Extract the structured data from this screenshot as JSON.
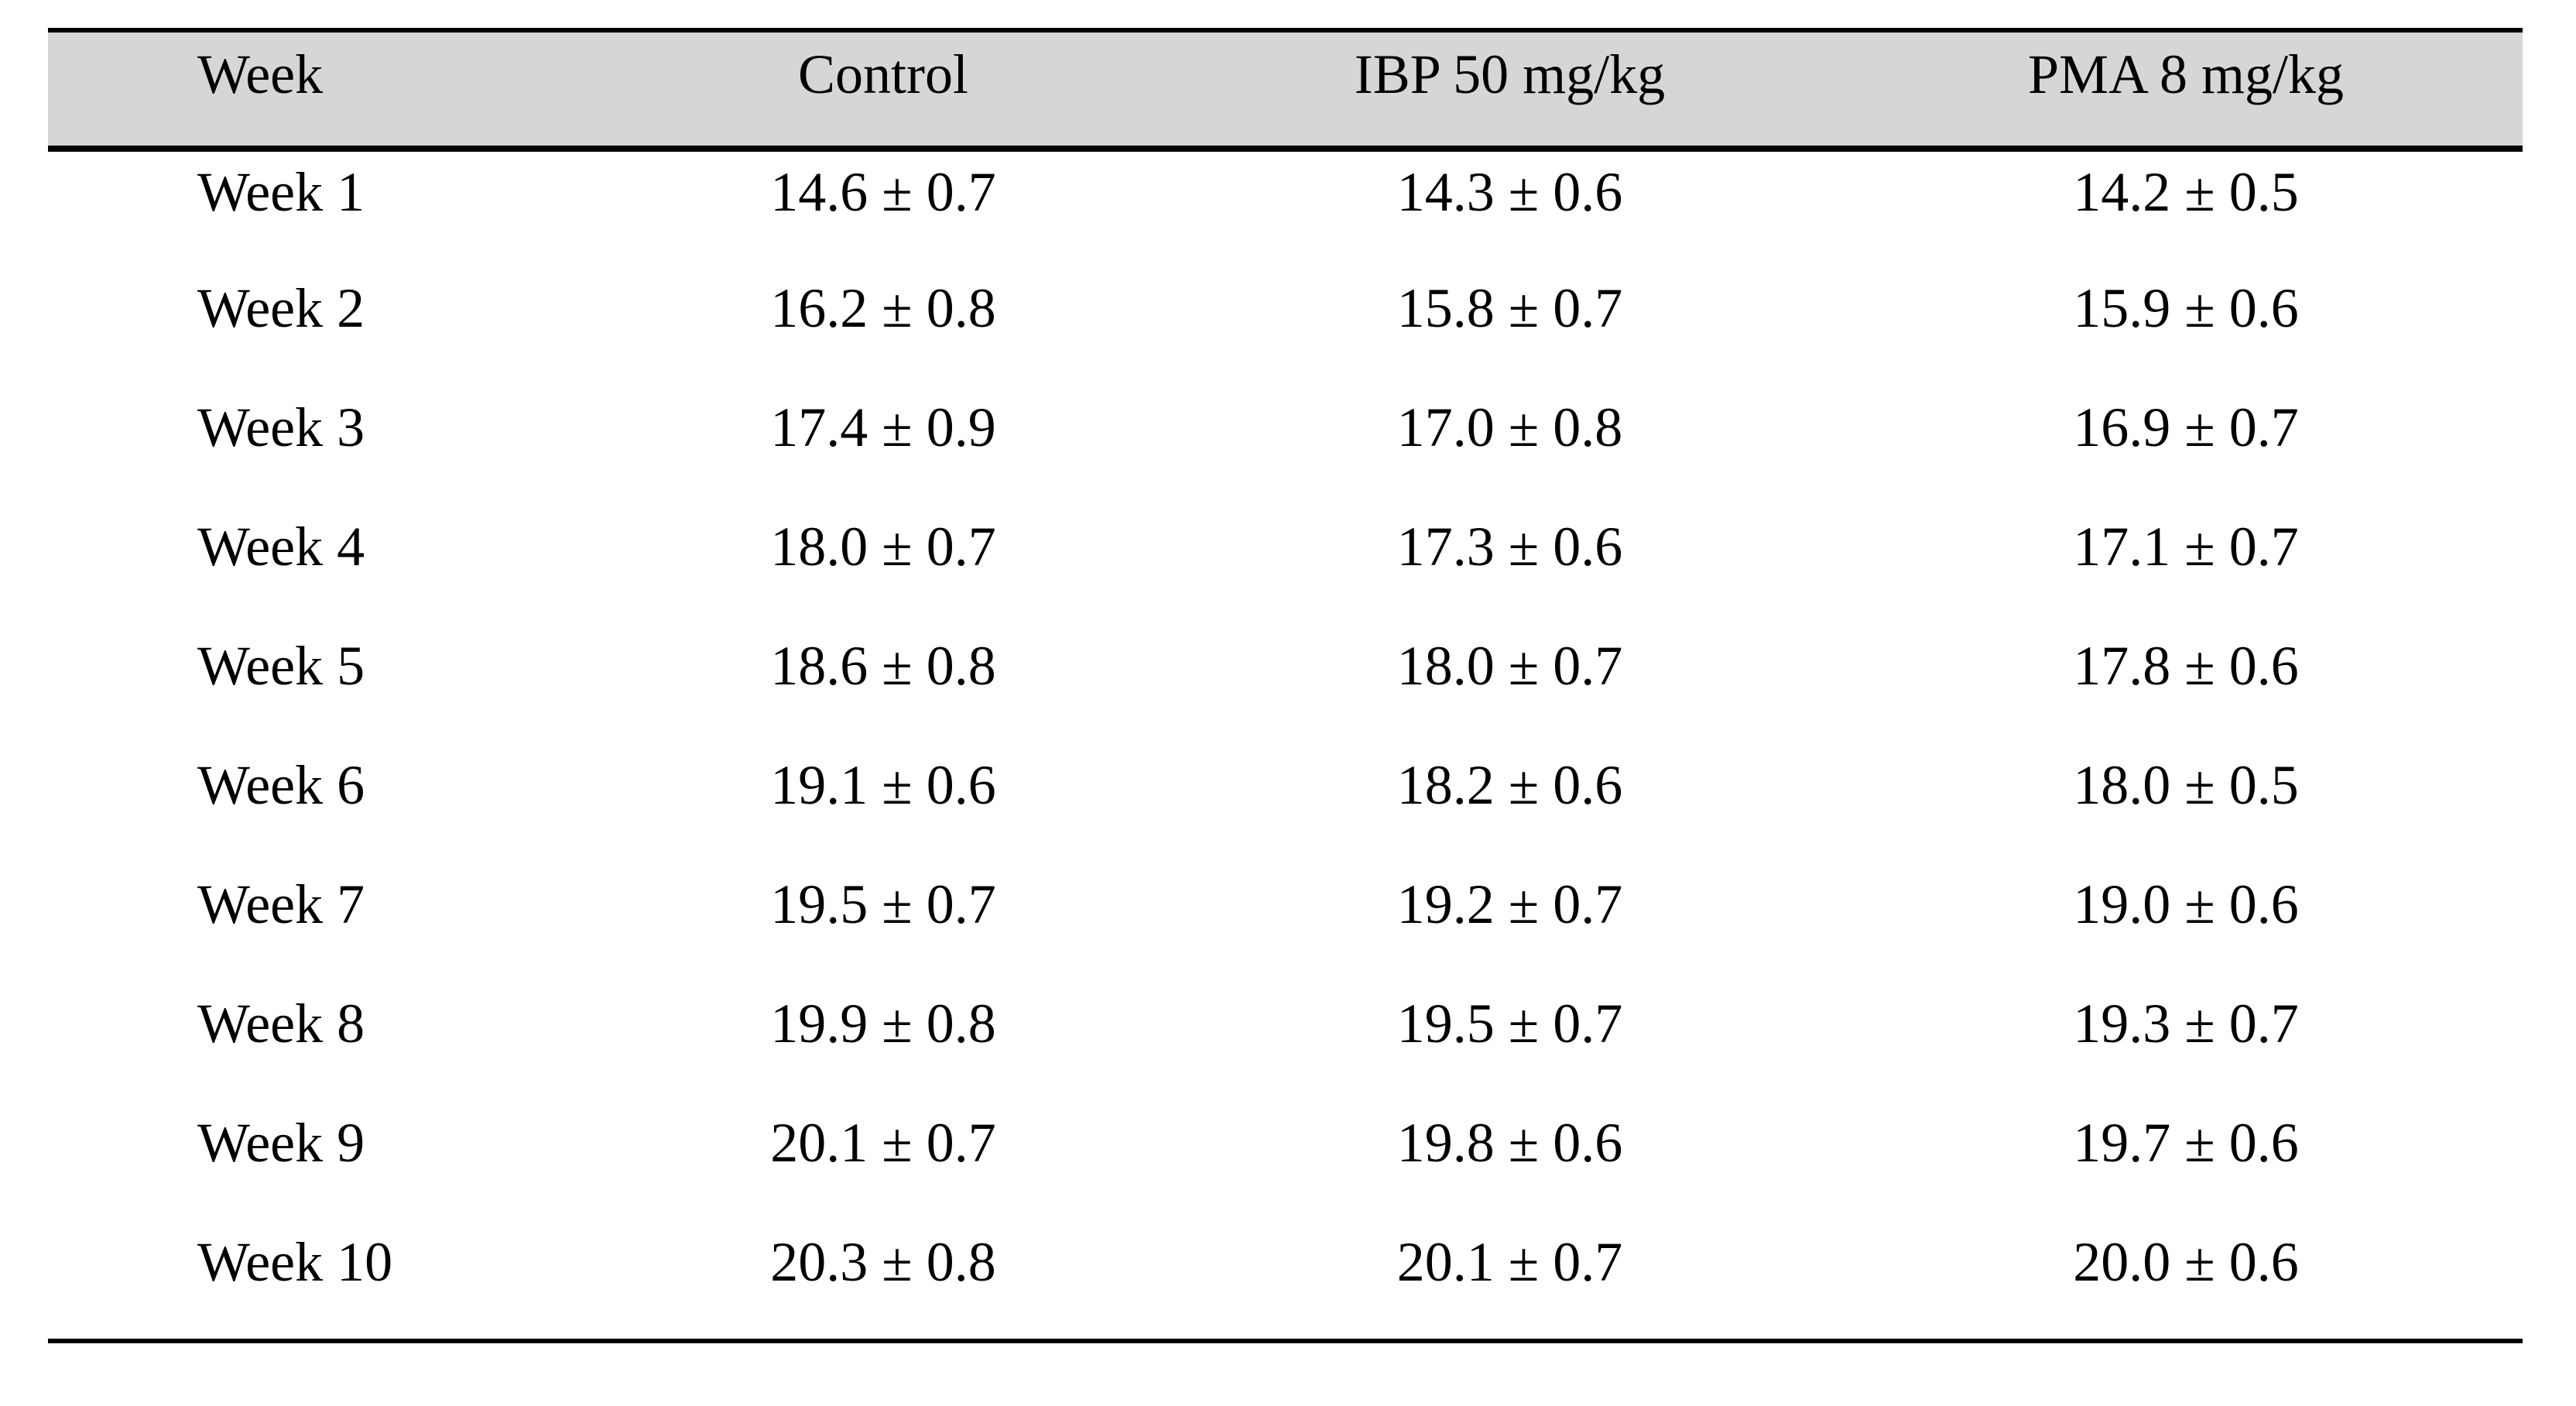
{
  "table": {
    "header": [
      "Week",
      "Control",
      "IBP 50 mg/kg",
      "PMA 8 mg/kg"
    ],
    "rows": [
      [
        "Week 1",
        "14.6 ± 0.7",
        "14.3 ± 0.6",
        "14.2 ± 0.5"
      ],
      [
        "Week 2",
        "16.2 ± 0.8",
        "15.8 ± 0.7",
        "15.9 ± 0.6"
      ],
      [
        "Week 3",
        "17.4 ± 0.9",
        "17.0 ± 0.8",
        "16.9 ± 0.7"
      ],
      [
        "Week 4",
        "18.0 ± 0.7",
        "17.3 ± 0.6",
        "17.1 ± 0.7"
      ],
      [
        "Week 5",
        "18.6 ± 0.8",
        "18.0 ± 0.7",
        "17.8 ± 0.6"
      ],
      [
        "Week 6",
        "19.1 ± 0.6",
        "18.2 ± 0.6",
        "18.0 ± 0.5"
      ],
      [
        "Week 7",
        "19.5 ± 0.7",
        "19.2 ± 0.7",
        "19.0 ± 0.6"
      ],
      [
        "Week 8",
        "19.9 ± 0.8",
        "19.5 ± 0.7",
        "19.3 ± 0.7"
      ],
      [
        "Week 9",
        "20.1 ± 0.7",
        "19.8 ± 0.6",
        "19.7 ± 0.6"
      ],
      [
        "Week 10",
        "20.3 ± 0.8",
        "20.1 ± 0.7",
        "20.0 ± 0.6"
      ]
    ]
  },
  "chart_data": {
    "type": "table",
    "title": "",
    "columns": [
      "Week",
      "Control",
      "IBP 50 mg/kg",
      "PMA 8 mg/kg"
    ],
    "categories": [
      "Week 1",
      "Week 2",
      "Week 3",
      "Week 4",
      "Week 5",
      "Week 6",
      "Week 7",
      "Week 8",
      "Week 9",
      "Week 10"
    ],
    "series": [
      {
        "name": "Control",
        "mean": [
          14.6,
          16.2,
          17.4,
          18.0,
          18.6,
          19.1,
          19.5,
          19.9,
          20.1,
          20.3
        ],
        "sd": [
          0.7,
          0.8,
          0.9,
          0.7,
          0.8,
          0.6,
          0.7,
          0.8,
          0.7,
          0.8
        ]
      },
      {
        "name": "IBP 50 mg/kg",
        "mean": [
          14.3,
          15.8,
          17.0,
          17.3,
          18.0,
          18.2,
          19.2,
          19.5,
          19.8,
          20.1
        ],
        "sd": [
          0.6,
          0.7,
          0.8,
          0.6,
          0.7,
          0.6,
          0.7,
          0.7,
          0.6,
          0.7
        ]
      },
      {
        "name": "PMA 8 mg/kg",
        "mean": [
          14.2,
          15.9,
          16.9,
          17.1,
          17.8,
          18.0,
          19.0,
          19.3,
          19.7,
          20.0
        ],
        "sd": [
          0.5,
          0.6,
          0.7,
          0.7,
          0.6,
          0.5,
          0.6,
          0.7,
          0.6,
          0.6
        ]
      }
    ],
    "value_format": "mean ± sd",
    "grid": false,
    "legend_position": "none"
  },
  "colors": {
    "header_bg": "#d6d6d6",
    "rule": "#000000",
    "text": "#000000",
    "background": "#ffffff"
  }
}
